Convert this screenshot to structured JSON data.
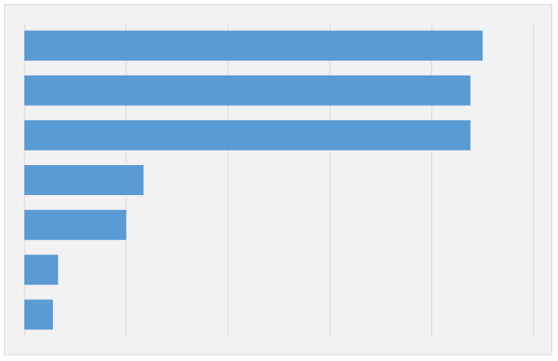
{
  "chart_data": {
    "type": "bar",
    "orientation": "horizontal",
    "categories": [
      "",
      "",
      "",
      "",
      "",
      "",
      ""
    ],
    "values": [
      4.5,
      4.38,
      4.38,
      1.17,
      1.0,
      0.33,
      0.28
    ],
    "xlim": [
      0,
      5
    ],
    "grid": "vertical",
    "legend": "none",
    "title": "",
    "xlabel": "",
    "ylabel": "",
    "colors": {
      "bar": "#5b9bd5",
      "background": "#f2f2f2",
      "gridline": "#d9d9d9",
      "border": "#d9d9d9"
    }
  }
}
